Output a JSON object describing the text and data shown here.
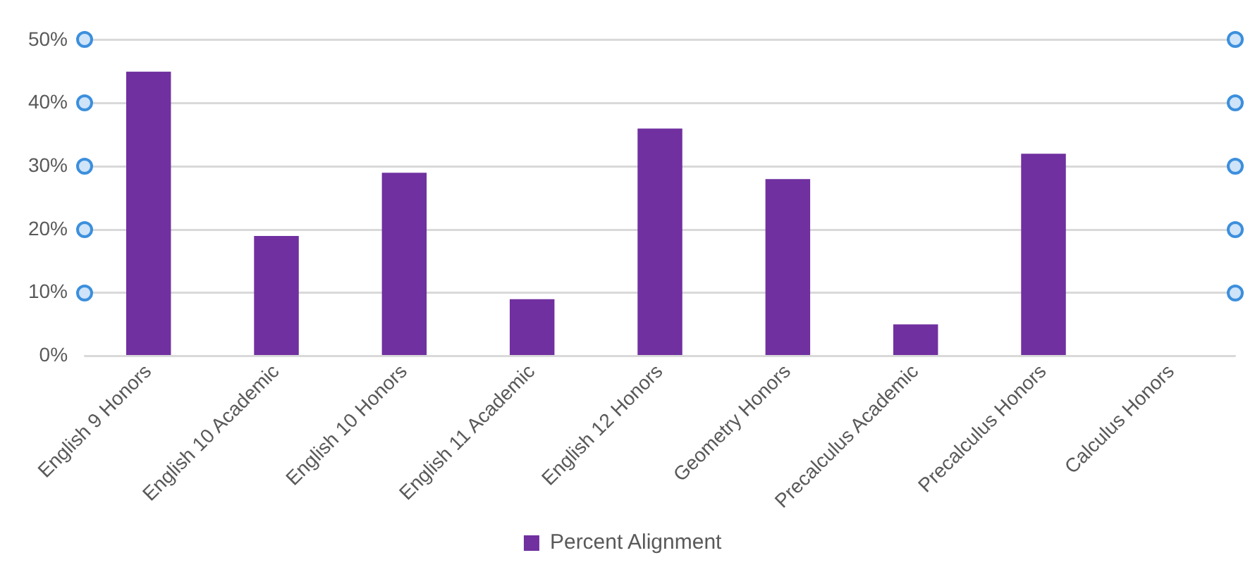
{
  "chart_data": {
    "type": "bar",
    "categories": [
      "English 9 Honors",
      "English 10 Academic",
      "English 10 Honors",
      "English 11 Academic",
      "English 12 Honors",
      "Geometry Honors",
      "Precalculus Academic",
      "Precalculus Honors",
      "Calculus Honors"
    ],
    "series": [
      {
        "name": "Percent Alignment",
        "color": "#7030a0",
        "values": [
          45,
          19,
          29,
          9,
          36,
          28,
          5,
          32,
          0
        ]
      }
    ],
    "ylim": [
      0,
      50
    ],
    "yticks": [
      {
        "value": 0,
        "label": "0%"
      },
      {
        "value": 10,
        "label": "10%"
      },
      {
        "value": 20,
        "label": "20%"
      },
      {
        "value": 30,
        "label": "30%"
      },
      {
        "value": 40,
        "label": "40%"
      },
      {
        "value": 50,
        "label": "50%"
      }
    ],
    "grid": "y",
    "legend": "bottom"
  }
}
